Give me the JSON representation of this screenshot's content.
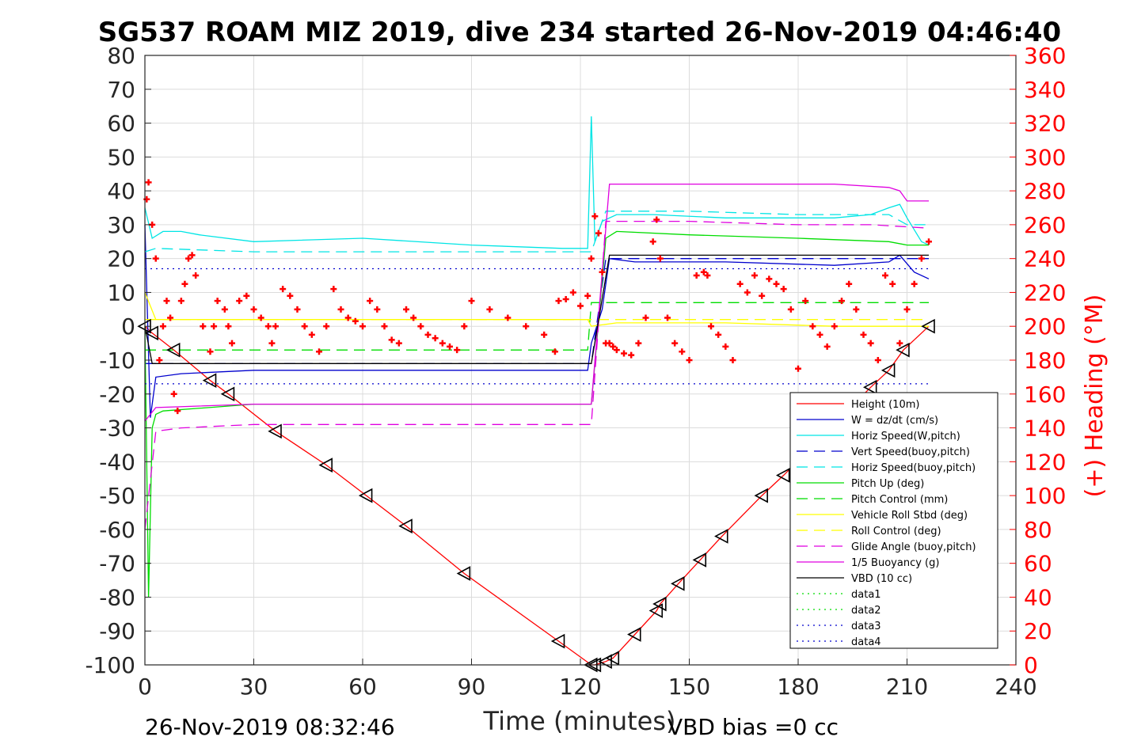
{
  "chart_data": {
    "type": "line",
    "title": "SG537 ROAM MIZ 2019, dive 234 started 26-Nov-2019 04:46:40",
    "xlabel": "Time (minutes)",
    "ylabel": "",
    "ylabel_right": "(+) Heading (°M)",
    "xlim": [
      0,
      240
    ],
    "ylim": [
      -100,
      80
    ],
    "ylim_right": [
      0,
      360
    ],
    "xticks": [
      "0",
      "30",
      "60",
      "90",
      "120",
      "150",
      "180",
      "210",
      "240"
    ],
    "yticks": [
      "80",
      "70",
      "60",
      "50",
      "40",
      "30",
      "20",
      "10",
      "0",
      "-10",
      "-20",
      "-30",
      "-40",
      "-50",
      "-60",
      "-70",
      "-80",
      "-90",
      "-100"
    ],
    "yticks_right": [
      "360",
      "340",
      "320",
      "300",
      "280",
      "260",
      "240",
      "220",
      "200",
      "180",
      "160",
      "140",
      "120",
      "100",
      "80",
      "60",
      "40",
      "20",
      "0"
    ],
    "grid": true,
    "legend_position": "bottom-right",
    "footer_left": "26-Nov-2019 08:32:46",
    "footer_right": "VBD bias =0 cc",
    "colors": {
      "height": "#ff0000",
      "w": "#0000cd",
      "horiz_speed": "#00e5e5",
      "pitch": "#00dd00",
      "roll": "#ffff00",
      "glide": "#e000e0",
      "buoyancy": "#e000e0",
      "vbd": "#000000",
      "heading": "#ff0000"
    },
    "series": [
      {
        "name": "Height (10m)",
        "color": "#ff0000",
        "style": "solid",
        "x": [
          0,
          2,
          8,
          18,
          23,
          36,
          50,
          61,
          72,
          88,
          114,
          123,
          124,
          127,
          129,
          135,
          141,
          142,
          147,
          153,
          159,
          170,
          176,
          200,
          205,
          209,
          216
        ],
        "y": [
          0,
          -2,
          -7,
          -16,
          -20,
          -31,
          -41,
          -50,
          -59,
          -73,
          -93,
          -100,
          -100,
          -99,
          -98,
          -91,
          -84,
          -82,
          -76,
          -69,
          -62,
          -50,
          -44,
          -18,
          -13,
          -7,
          0
        ]
      },
      {
        "name": "W = dz/dt (cm/s)",
        "color": "#0000cd",
        "style": "solid",
        "x": [
          0,
          1.5,
          3,
          10,
          30,
          60,
          90,
          122,
          123,
          126,
          128,
          135,
          160,
          190,
          205,
          208,
          212,
          216
        ],
        "y": [
          30,
          -27,
          -15,
          -14,
          -13,
          -13,
          -13,
          -13,
          -5,
          5,
          20,
          19,
          19,
          18,
          19,
          21,
          16,
          14
        ]
      },
      {
        "name": "Horiz Speed(W,pitch)",
        "color": "#00e5e5",
        "style": "solid",
        "x": [
          0,
          2,
          5,
          10,
          15,
          30,
          60,
          90,
          115,
          122,
          123,
          124,
          126,
          130,
          140,
          160,
          190,
          200,
          205,
          208,
          210,
          214,
          216
        ],
        "y": [
          35,
          26,
          28,
          28,
          27,
          25,
          26,
          24,
          23,
          23,
          62,
          25,
          31,
          33,
          33,
          32,
          32,
          33,
          35,
          36,
          32,
          25,
          24
        ]
      },
      {
        "name": "Vert Speed(buoy,pitch)",
        "color": "#0000cd",
        "style": "dashed",
        "x": [
          0,
          3,
          122,
          123,
          127,
          216
        ],
        "y": [
          -11,
          -11,
          -11,
          -11,
          20,
          20
        ]
      },
      {
        "name": "Horiz Speed(buoy,pitch)",
        "color": "#00e5e5",
        "style": "dashed",
        "x": [
          0,
          3,
          30,
          60,
          122,
          123,
          127,
          150,
          180,
          205,
          210,
          216
        ],
        "y": [
          22,
          23,
          22,
          22,
          22,
          22,
          34,
          34,
          33,
          33,
          30,
          30
        ]
      },
      {
        "name": "Pitch Up (deg)",
        "color": "#00dd00",
        "style": "solid",
        "x": [
          0,
          1,
          2,
          3,
          5,
          30,
          60,
          90,
          122,
          123,
          127,
          130,
          150,
          180,
          205,
          210,
          216
        ],
        "y": [
          0,
          -80,
          -30,
          -26,
          -25,
          -23,
          -23,
          -23,
          -23,
          -23,
          26,
          28,
          27,
          26,
          25,
          24,
          24
        ]
      },
      {
        "name": "Pitch Control (mm)",
        "color": "#00dd00",
        "style": "dashed",
        "x": [
          0,
          3,
          122,
          123,
          216
        ],
        "y": [
          -7,
          -7,
          -7,
          7,
          7
        ]
      },
      {
        "name": "Vehicle Roll Stbd (deg)",
        "color": "#ffff00",
        "style": "solid",
        "x": [
          0,
          3,
          10,
          30,
          60,
          90,
          122,
          123,
          130,
          160,
          190,
          216
        ],
        "y": [
          10,
          2,
          2,
          2,
          2,
          2,
          2,
          0,
          1,
          1,
          0,
          0
        ]
      },
      {
        "name": "Roll Control (deg)",
        "color": "#ffff00",
        "style": "dashed",
        "x": [
          0,
          216
        ],
        "y": [
          2,
          2
        ]
      },
      {
        "name": "Glide Angle (buoy,pitch)",
        "color": "#e000e0",
        "style": "dashed",
        "x": [
          0,
          3,
          10,
          30,
          60,
          90,
          122,
          123,
          127,
          150,
          180,
          200,
          216
        ],
        "y": [
          -60,
          -31,
          -30,
          -29,
          -29,
          -29,
          -29,
          -29,
          31,
          31,
          30,
          30,
          29
        ]
      },
      {
        "name": "1/5 Buoyancy (g)",
        "color": "#e000e0",
        "style": "solid",
        "x": [
          0,
          3,
          30,
          60,
          122,
          123,
          128,
          160,
          190,
          205,
          208,
          210,
          216
        ],
        "y": [
          -28,
          -24,
          -23,
          -23,
          -23,
          -23,
          42,
          42,
          42,
          41,
          40,
          37,
          37
        ]
      },
      {
        "name": "VBD (10 cc)",
        "color": "#000000",
        "style": "solid",
        "x": [
          0,
          2,
          122,
          123,
          128,
          216
        ],
        "y": [
          0,
          -11,
          -11,
          -11,
          21,
          21
        ]
      },
      {
        "name": "data1",
        "color": "#00dd00",
        "style": "dotted",
        "x": [],
        "y": []
      },
      {
        "name": "data2",
        "color": "#00dd00",
        "style": "dotted",
        "x": [],
        "y": []
      },
      {
        "name": "data3",
        "color": "#0000cd",
        "style": "dotted",
        "x": [
          0,
          216
        ],
        "y": [
          17,
          17
        ]
      },
      {
        "name": "data4",
        "color": "#0000cd",
        "style": "dotted",
        "x": [
          0,
          216
        ],
        "y": [
          -17,
          -17
        ]
      }
    ],
    "heading": {
      "axis": "right",
      "color": "#ff0000",
      "x": [
        0.5,
        1,
        2,
        3,
        4,
        5,
        6,
        7,
        8,
        9,
        10,
        11,
        12,
        13,
        14,
        16,
        18,
        19,
        20,
        22,
        23,
        24,
        26,
        28,
        30,
        32,
        34,
        35,
        36,
        38,
        40,
        42,
        44,
        46,
        48,
        50,
        52,
        54,
        56,
        58,
        60,
        62,
        64,
        66,
        68,
        70,
        72,
        74,
        76,
        78,
        80,
        82,
        84,
        86,
        88,
        90,
        95,
        100,
        105,
        110,
        113,
        114,
        116,
        118,
        120,
        122,
        123,
        124,
        125,
        126,
        127,
        128,
        129,
        130,
        132,
        134,
        136,
        138,
        140,
        141,
        142,
        144,
        146,
        148,
        150,
        152,
        154,
        155,
        156,
        158,
        160,
        162,
        164,
        166,
        168,
        170,
        172,
        174,
        176,
        178,
        180,
        182,
        184,
        186,
        188,
        190,
        192,
        194,
        196,
        198,
        200,
        202,
        204,
        206,
        208,
        210,
        212,
        214,
        216
      ],
      "y": [
        275,
        285,
        260,
        240,
        180,
        200,
        215,
        205,
        160,
        150,
        215,
        225,
        240,
        242,
        230,
        200,
        185,
        200,
        215,
        210,
        200,
        190,
        215,
        218,
        210,
        205,
        200,
        190,
        200,
        222,
        218,
        210,
        200,
        195,
        185,
        200,
        222,
        210,
        205,
        203,
        200,
        215,
        210,
        200,
        192,
        190,
        210,
        205,
        200,
        195,
        193,
        190,
        188,
        186,
        200,
        215,
        210,
        205,
        200,
        195,
        185,
        215,
        216,
        220,
        212,
        218,
        240,
        265,
        255,
        232,
        190,
        190,
        188,
        186,
        184,
        183,
        190,
        205,
        250,
        263,
        240,
        205,
        190,
        185,
        180,
        230,
        232,
        230,
        200,
        195,
        188,
        180,
        225,
        220,
        230,
        218,
        228,
        225,
        222,
        210,
        175,
        215,
        200,
        195,
        188,
        200,
        215,
        225,
        210,
        195,
        190,
        180,
        230,
        225,
        190,
        210,
        225,
        240,
        250
      ]
    }
  }
}
